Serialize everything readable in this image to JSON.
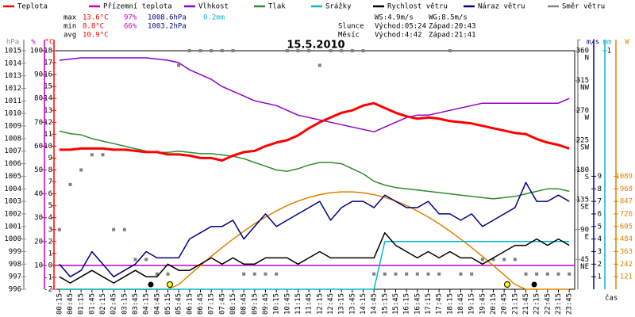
{
  "chart_data": {
    "type": "line",
    "title": "15.5.2010",
    "legend": [
      {
        "name": "Teplota",
        "color": "#ff0000"
      },
      {
        "name": "Přízemní teplota",
        "color": "#c000c0"
      },
      {
        "name": "Vlhkost",
        "color": "#8a00c8"
      },
      {
        "name": "Tlak",
        "color": "#2e8b2e"
      },
      {
        "name": "Srážky",
        "color": "#00b8d0"
      },
      {
        "name": "Rychlost větru",
        "color": "#000000"
      },
      {
        "name": "Náraz větru",
        "color": "#000080"
      },
      {
        "name": "Směr větru",
        "color": "#808080"
      }
    ],
    "stats": [
      {
        "label": "max",
        "temp": "13.6°C",
        "hum": "97%",
        "press": "1008.6hPa",
        "rain": "0.2mm"
      },
      {
        "label": "min",
        "temp": "8.8°C",
        "hum": "66%",
        "press": "1003.2hPa"
      },
      {
        "label": "avg",
        "temp": "10.9°C"
      }
    ],
    "wind": [
      "WS:4.9m/s",
      "WG:8.5m/s"
    ],
    "sun": {
      "label": "Slunce",
      "rise": "Východ:05:24",
      "set": "Západ:20:43"
    },
    "moon": {
      "label": "Měsíc",
      "rise": "Východ:4:42",
      "set": "Západ:21:41"
    },
    "x_label": "čas",
    "categories": [
      "00:15",
      "00:45",
      "01:15",
      "01:45",
      "02:15",
      "02:45",
      "03:15",
      "03:45",
      "04:15",
      "04:45",
      "05:15",
      "05:45",
      "06:15",
      "06:45",
      "07:15",
      "07:45",
      "08:15",
      "08:45",
      "09:15",
      "09:45",
      "10:15",
      "10:45",
      "11:15",
      "11:45",
      "12:15",
      "12:45",
      "13:15",
      "13:45",
      "14:15",
      "14:45",
      "15:15",
      "15:45",
      "16:15",
      "16:45",
      "17:15",
      "17:45",
      "18:15",
      "18:45",
      "19:15",
      "19:45",
      "20:15",
      "20:45",
      "21:15",
      "21:45",
      "22:15",
      "22:45",
      "23:15",
      "23:45"
    ],
    "axes": [
      {
        "label": "hPa",
        "lim": [
          996,
          1015
        ],
        "ticks": [
          996,
          997,
          998,
          999,
          1000,
          1001,
          1002,
          1003,
          1004,
          1005,
          1006,
          1007,
          1008,
          1009,
          1010,
          1011,
          1012,
          1013,
          1014,
          1015
        ],
        "color": "#909090"
      },
      {
        "label": "%",
        "lim": [
          0,
          100
        ],
        "ticks": [
          10,
          20,
          30,
          40,
          50,
          60,
          70,
          80,
          90,
          100
        ],
        "color": "#c000c0"
      },
      {
        "label": "°C",
        "lim": [
          -2,
          18
        ],
        "ticks": [
          -2,
          -1,
          0,
          1,
          2,
          3,
          4,
          5,
          6,
          7,
          8,
          9,
          10,
          11,
          12,
          13,
          14,
          15,
          16,
          17,
          18
        ],
        "color": "#ff0000",
        "zero_line": true
      },
      {
        "label": "°",
        "lim": [
          0,
          360
        ],
        "ticks": [
          {
            "value": 45,
            "label": "45",
            "dir": "NE"
          },
          {
            "value": 90,
            "label": "90",
            "dir": "E"
          },
          {
            "value": 135,
            "label": "135",
            "dir": "SE"
          },
          {
            "value": 180,
            "label": "180",
            "dir": "S"
          },
          {
            "value": 225,
            "label": "225",
            "dir": "SW"
          },
          {
            "value": 270,
            "label": "270",
            "dir": "W"
          },
          {
            "value": 315,
            "label": "315",
            "dir": "NW"
          },
          {
            "value": 360,
            "label": "360",
            "dir": "N"
          }
        ],
        "color": "#909090"
      },
      {
        "label": "m/s",
        "lim": [
          0,
          19
        ],
        "ticks": [
          1,
          2,
          3,
          4,
          5,
          6,
          7,
          8,
          9
        ],
        "color": "#000080"
      },
      {
        "label": "mm",
        "lim": [
          0,
          1
        ],
        "ticks": [
          1
        ],
        "color": "#00b8d0"
      },
      {
        "label": "W",
        "lim": [
          0,
          2299
        ],
        "ticks": [
          121,
          242,
          363,
          484,
          605,
          726,
          847,
          968,
          1089
        ],
        "color": "#e08000"
      }
    ],
    "series": [
      {
        "axis": 6,
        "color": "#e08000",
        "line_width": 1.5,
        "values": [
          0,
          0,
          0,
          0,
          0,
          0,
          0,
          0,
          0,
          0,
          0,
          46,
          138,
          228,
          317,
          402,
          483,
          560,
          632,
          696,
          755,
          807,
          850,
          885,
          912,
          930,
          939,
          939,
          930,
          912,
          885,
          850,
          807,
          755,
          696,
          632,
          560,
          483,
          402,
          317,
          228,
          138,
          46,
          0,
          0,
          0,
          0,
          0
        ]
      },
      {
        "legend": 4,
        "axis": 5,
        "line_width": 1.5,
        "values": [
          0,
          0,
          0,
          0,
          0,
          0,
          0,
          0,
          0,
          0,
          0,
          0,
          0,
          0,
          0,
          0,
          0,
          0,
          0,
          0,
          0,
          0,
          0,
          0,
          0,
          0,
          0,
          0,
          0,
          0,
          0.2,
          0.2,
          0.2,
          0.2,
          0.2,
          0.2,
          0.2,
          0.2,
          0.2,
          0.2,
          0.2,
          0.2,
          0.2,
          0.2,
          0.2,
          0.2,
          0.2,
          0.2
        ]
      },
      {
        "legend": 3,
        "axis": 0,
        "line_width": 1.5,
        "values": [
          1008.6,
          1008.4,
          1008.3,
          1008.0,
          1007.8,
          1007.6,
          1007.4,
          1007.2,
          1007.0,
          1006.9,
          1006.9,
          1007.0,
          1006.9,
          1006.8,
          1006.8,
          1006.7,
          1006.6,
          1006.4,
          1006.1,
          1005.8,
          1005.5,
          1005.4,
          1005.6,
          1005.9,
          1006.1,
          1006.1,
          1006.0,
          1005.6,
          1005.2,
          1004.6,
          1004.3,
          1004.1,
          1004.0,
          1003.9,
          1003.8,
          1003.7,
          1003.6,
          1003.5,
          1003.4,
          1003.3,
          1003.2,
          1003.3,
          1003.4,
          1003.6,
          1003.8,
          1004.0,
          1004.0,
          1003.8
        ]
      },
      {
        "legend": 2,
        "axis": 1,
        "line_width": 1.5,
        "values": [
          96,
          96.5,
          97,
          97,
          97,
          97,
          97,
          97,
          97,
          96.5,
          96,
          95,
          92,
          90,
          88,
          85,
          83,
          81,
          79,
          78,
          77,
          75,
          73,
          72,
          71,
          70,
          69,
          68,
          67,
          66,
          68,
          70,
          72,
          73,
          73,
          74,
          75,
          76,
          77,
          78,
          78,
          78,
          78,
          78,
          78,
          78,
          78,
          80
        ]
      },
      {
        "legend": 0,
        "axis": 2,
        "line_width": 3,
        "values": [
          9.7,
          9.7,
          9.8,
          9.8,
          9.8,
          9.7,
          9.7,
          9.6,
          9.5,
          9.5,
          9.3,
          9.3,
          9.2,
          9.0,
          9.0,
          8.8,
          9.2,
          9.5,
          9.6,
          10.0,
          10.3,
          10.5,
          10.9,
          11.5,
          12.0,
          12.4,
          12.8,
          13.0,
          13.4,
          13.6,
          13.2,
          12.8,
          12.5,
          12.3,
          12.4,
          12.3,
          12.1,
          12.0,
          11.9,
          11.7,
          11.5,
          11.3,
          11.1,
          11.0,
          10.6,
          10.3,
          10.1,
          9.8
        ]
      },
      {
        "legend": 7,
        "axis": 3,
        "points": true,
        "values": [
          90,
          158,
          180,
          203,
          203,
          90,
          90,
          45,
          45,
          23,
          23,
          338,
          360,
          360,
          360,
          360,
          360,
          23,
          23,
          23,
          23,
          360,
          360,
          360,
          338,
          360,
          360,
          360,
          360,
          23,
          23,
          23,
          23,
          23,
          23,
          23,
          360,
          23,
          23,
          45,
          45,
          45,
          45,
          23,
          23,
          23,
          23,
          23
        ]
      },
      {
        "legend": 5,
        "axis": 4,
        "line_width": 1.5,
        "values": [
          1,
          0.5,
          1,
          1.5,
          1,
          0.5,
          1,
          1.5,
          1,
          1,
          2,
          1.5,
          1.5,
          2,
          2.5,
          2,
          2.5,
          2,
          2,
          2.5,
          2.5,
          2.5,
          2,
          2.5,
          3,
          2.5,
          2.5,
          2.5,
          2.5,
          2.5,
          4.5,
          3.5,
          3,
          2.5,
          3,
          2.5,
          3,
          2.5,
          2.5,
          2,
          2.5,
          3,
          3.5,
          3.5,
          4,
          3.5,
          4,
          3.5
        ]
      },
      {
        "legend": 6,
        "axis": 4,
        "line_width": 1.5,
        "values": [
          2,
          1,
          1.5,
          3,
          2,
          1,
          1.5,
          2,
          3,
          2.5,
          2.5,
          2.5,
          4,
          4.5,
          5,
          5,
          5.5,
          4,
          5,
          6,
          5,
          5.5,
          6,
          6.5,
          7,
          5.5,
          6.5,
          7,
          7,
          6.5,
          7.5,
          7,
          6.5,
          6.5,
          7,
          6,
          6,
          5.5,
          6,
          5,
          5.5,
          6,
          6.5,
          8.5,
          7,
          7,
          7.5,
          7
        ]
      }
    ]
  }
}
